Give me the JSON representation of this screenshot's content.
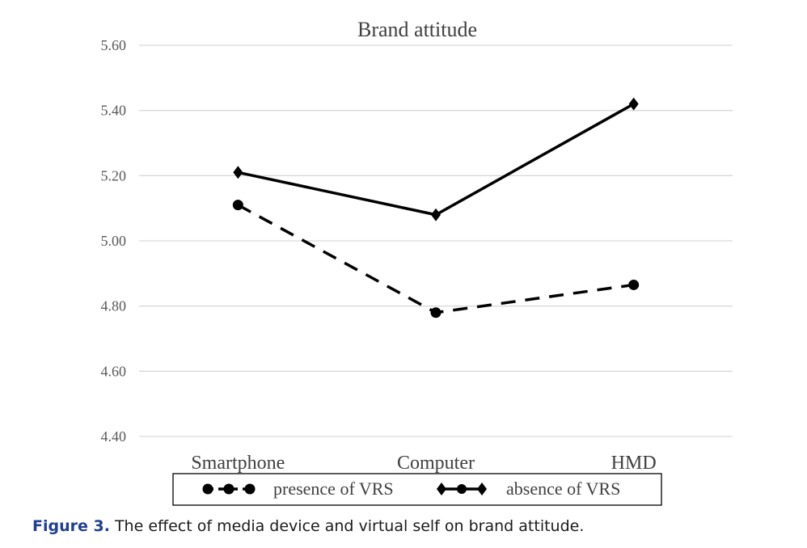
{
  "caption": {
    "label": "Figure 3.",
    "text": "The effect of media device and virtual self on brand attitude."
  },
  "chart_data": {
    "type": "line",
    "title": "Brand attitude",
    "categories": [
      "Smartphone",
      "Computer",
      "HMD"
    ],
    "ylim": [
      4.4,
      5.6
    ],
    "yticks": [
      "5.60",
      "5.40",
      "5.20",
      "5.00",
      "4.80",
      "4.60",
      "4.40"
    ],
    "grid": true,
    "legend_position": "bottom",
    "series": [
      {
        "name": "presence of VRS",
        "values": [
          5.11,
          4.78,
          4.865
        ],
        "style": "dashed",
        "marker": "circle",
        "color": "#000000"
      },
      {
        "name": "absence of VRS",
        "values": [
          5.21,
          5.08,
          5.42
        ],
        "style": "solid",
        "marker": "diamond",
        "color": "#000000"
      }
    ]
  }
}
